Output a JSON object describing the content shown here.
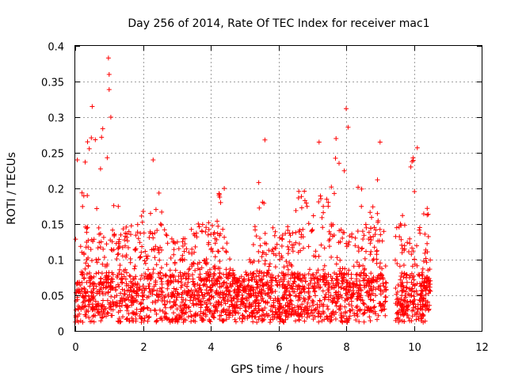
{
  "chart_data": {
    "type": "scatter",
    "title": "Day 256 of 2014, Rate Of TEC Index for receiver mac1",
    "xlabel": "GPS time / hours",
    "ylabel": "ROTI / TECUs",
    "xlim": [
      0,
      12
    ],
    "ylim": [
      0,
      0.4
    ],
    "x_ticks": [
      0,
      2,
      4,
      6,
      8,
      10,
      12
    ],
    "x_tick_labels": [
      "0",
      "2",
      "4",
      "6",
      "8",
      "10",
      "12"
    ],
    "y_ticks": [
      0,
      0.05,
      0.1,
      0.15,
      0.2,
      0.25,
      0.3,
      0.35,
      0.4
    ],
    "y_tick_labels": [
      "0",
      "0.05",
      "0.1",
      "0.15",
      "0.2",
      "0.25",
      "0.3",
      "0.35",
      "0.4"
    ],
    "grid": true,
    "marker": "+",
    "color": "#ff0000",
    "series": [
      {
        "name": "mac1",
        "envelope_hours": [
          0.0,
          0.25,
          0.5,
          0.75,
          1.0,
          1.25,
          1.5,
          1.75,
          2.0,
          2.25,
          2.5,
          2.75,
          3.0,
          3.25,
          3.5,
          3.75,
          4.0,
          4.25,
          4.5,
          4.75,
          5.0,
          5.25,
          5.5,
          5.75,
          6.0,
          6.25,
          6.5,
          6.75,
          7.0,
          7.25,
          7.5,
          7.75,
          8.0,
          8.25,
          8.5,
          8.75,
          9.0,
          9.25,
          9.5,
          9.75,
          10.0,
          10.25,
          10.5
        ],
        "envelope_roti": [
          0.14,
          0.24,
          0.31,
          0.28,
          0.38,
          0.2,
          0.16,
          0.15,
          0.17,
          0.24,
          0.19,
          0.14,
          0.13,
          0.15,
          0.14,
          0.16,
          0.16,
          0.2,
          0.12,
          0.07,
          0.08,
          0.12,
          0.27,
          0.17,
          0.16,
          0.2,
          0.2,
          0.21,
          0.26,
          0.21,
          0.18,
          0.27,
          0.31,
          0.22,
          0.2,
          0.21,
          0.27,
          0.0,
          0.16,
          0.19,
          0.26,
          0.23,
          0.18
        ],
        "highlights": [
          {
            "x": 0.06,
            "y": 0.24
          },
          {
            "x": 0.5,
            "y": 0.315
          },
          {
            "x": 0.98,
            "y": 0.383
          },
          {
            "x": 1.0,
            "y": 0.36
          },
          {
            "x": 1.05,
            "y": 0.3
          },
          {
            "x": 2.3,
            "y": 0.24
          },
          {
            "x": 4.4,
            "y": 0.2
          },
          {
            "x": 5.6,
            "y": 0.268
          },
          {
            "x": 7.2,
            "y": 0.265
          },
          {
            "x": 7.7,
            "y": 0.27
          },
          {
            "x": 8.0,
            "y": 0.312
          },
          {
            "x": 9.0,
            "y": 0.265
          },
          {
            "x": 10.1,
            "y": 0.257
          }
        ]
      }
    ]
  }
}
